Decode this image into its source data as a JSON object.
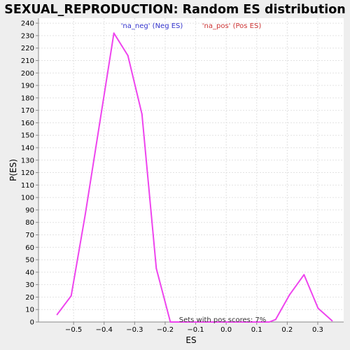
{
  "chart_data": {
    "type": "line",
    "title": "SEXUAL_REPRODUCTION: Random ES distribution",
    "xlabel": "ES",
    "ylabel": "P(ES)",
    "xlim": [
      -0.615,
      0.385
    ],
    "ylim": [
      0,
      244
    ],
    "x_ticks": [
      -0.5,
      -0.4,
      -0.3,
      -0.2,
      -0.1,
      0.0,
      0.1,
      0.2,
      0.3
    ],
    "x_tick_labels": [
      "−0.5",
      "−0.4",
      "−0.3",
      "−0.2",
      "−0.1",
      "0.0",
      "0.1",
      "0.2",
      "0.3"
    ],
    "y_ticks": [
      0,
      10,
      20,
      30,
      40,
      50,
      60,
      70,
      80,
      90,
      100,
      110,
      120,
      130,
      140,
      150,
      160,
      170,
      180,
      190,
      200,
      210,
      220,
      230,
      240
    ],
    "grid": true,
    "legend": [
      {
        "label": "'na_neg' (Neg ES)",
        "color": "#3333cc"
      },
      {
        "label": "'na_pos' (Pos ES)",
        "color": "#cc3333"
      }
    ],
    "annotation": "Sets with pos scores: 7%",
    "series": [
      {
        "name": "Random ES distribution",
        "color": "#ee44ee",
        "x": [
          -0.554,
          -0.508,
          -0.462,
          -0.415,
          -0.368,
          -0.322,
          -0.276,
          -0.229,
          -0.183,
          -0.137,
          -0.09,
          -0.044,
          0.002,
          0.049,
          0.095,
          0.141,
          0.162,
          0.208,
          0.255,
          0.301,
          0.347
        ],
        "y": [
          6,
          21,
          86,
          159,
          232,
          214,
          167,
          43,
          0,
          0,
          0,
          0,
          0,
          0,
          0,
          0,
          2,
          22,
          38,
          11,
          1
        ]
      }
    ]
  }
}
